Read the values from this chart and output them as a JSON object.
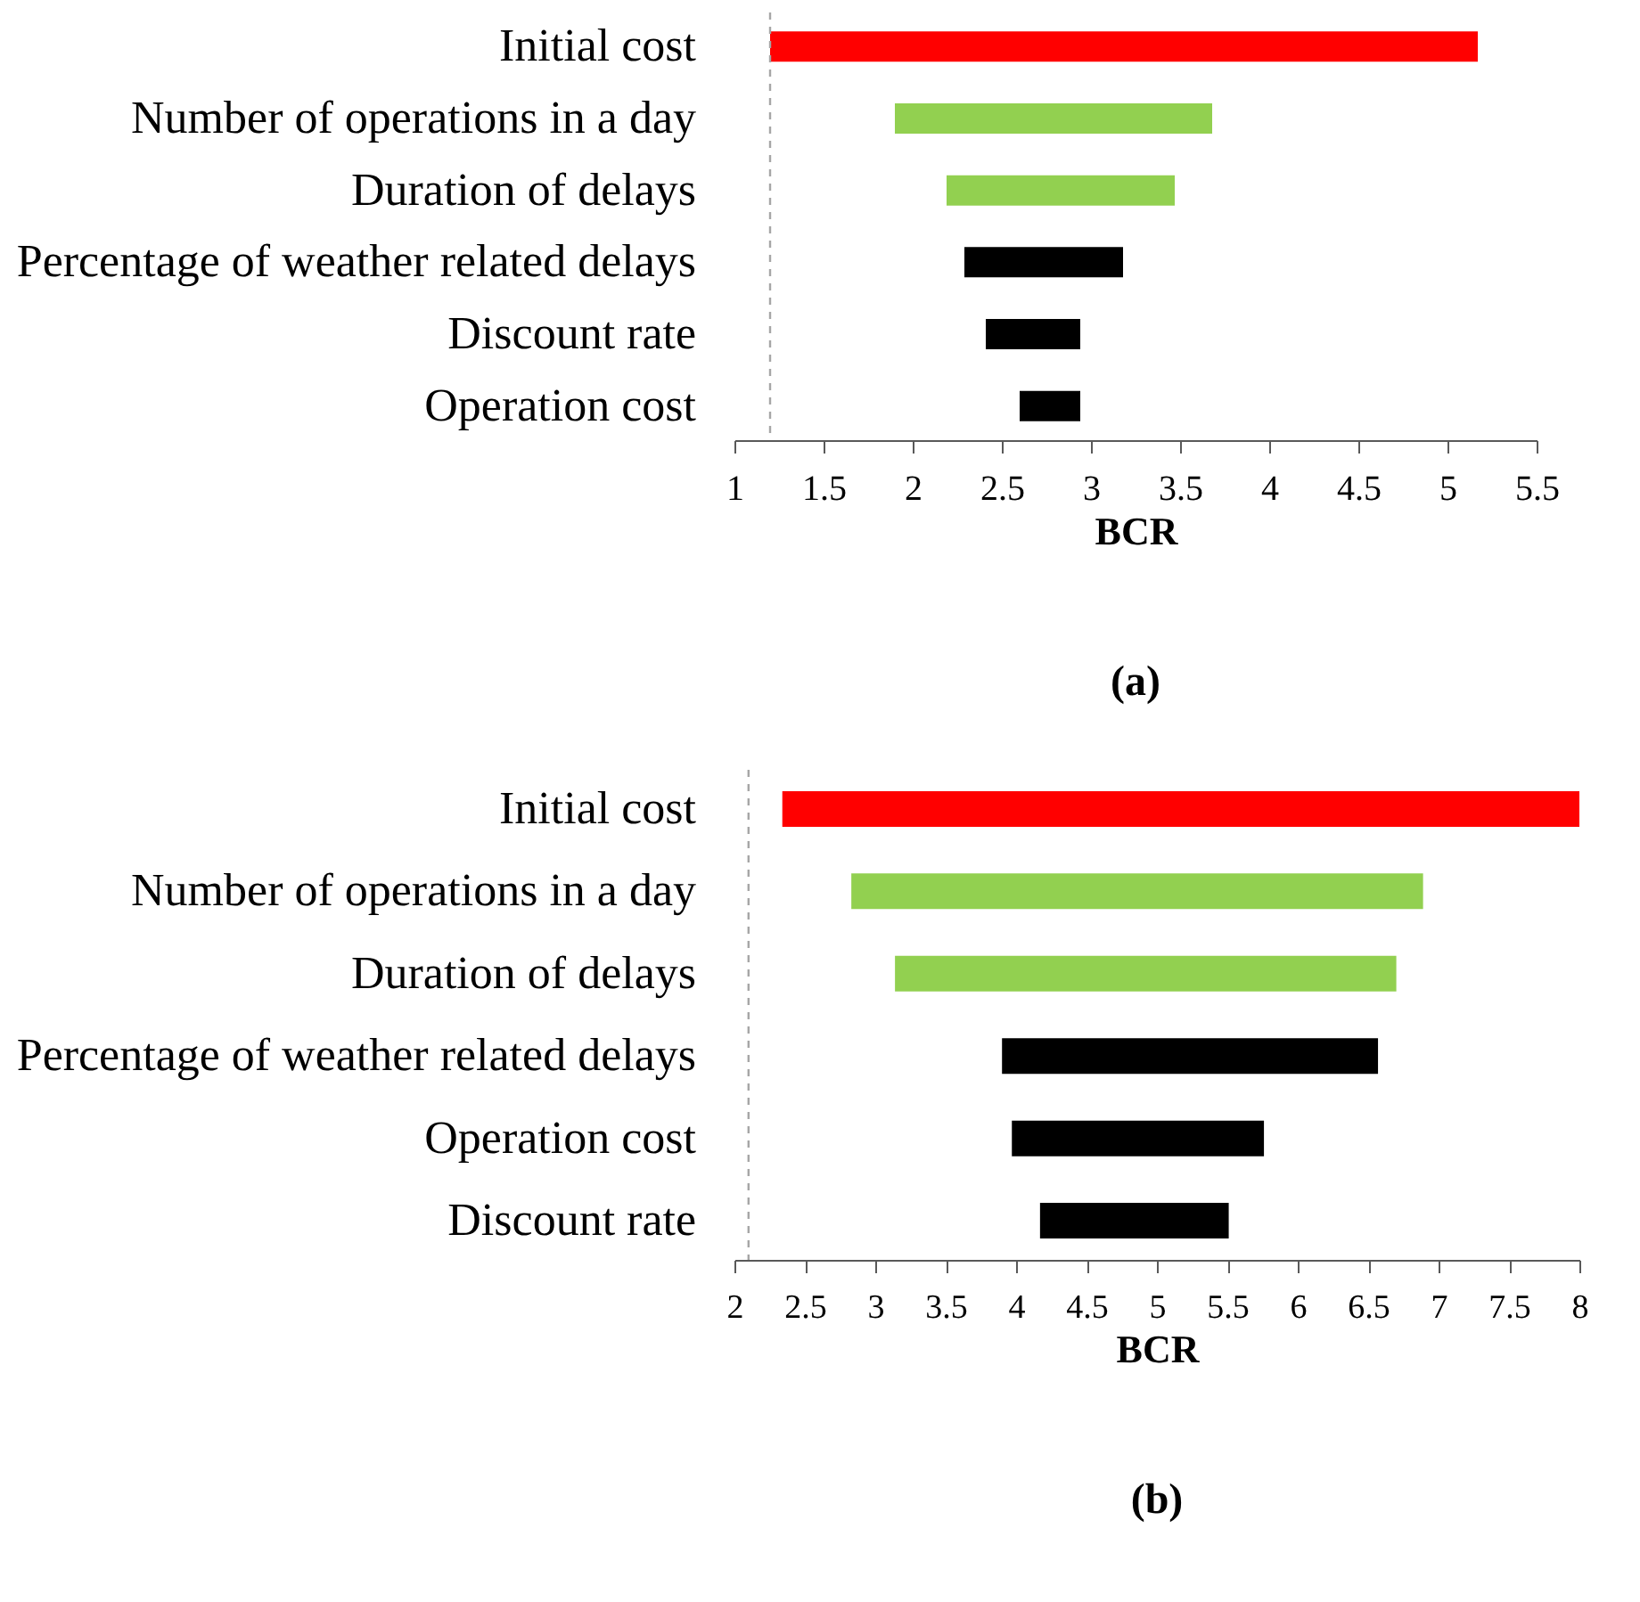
{
  "chart_data": [
    {
      "type": "bar",
      "orientation": "horizontal",
      "title": "(a)",
      "xlabel": "BCR",
      "categories": [
        "Initial cost",
        "Number of operations in a day",
        "Duration of delays",
        "Percentage of weather related delays",
        "Discount rate",
        "Operation cost"
      ],
      "base": [
        1.2,
        1.9,
        2.19,
        2.29,
        2.41,
        2.6
      ],
      "values": [
        3.97,
        1.78,
        1.28,
        0.89,
        0.53,
        0.34
      ],
      "colors": [
        "#ff0000",
        "#92d050",
        "#92d050",
        "#000000",
        "#000000",
        "#000000"
      ],
      "xlim": [
        1,
        5.5
      ],
      "xticks": [
        1,
        1.5,
        2,
        2.5,
        3,
        3.5,
        4,
        4.5,
        5,
        5.5
      ],
      "ref_lines": [
        {
          "axis": "x",
          "value": 1.2,
          "color": "#a6a6a6",
          "line_style": "dashed"
        }
      ]
    },
    {
      "type": "bar",
      "orientation": "horizontal",
      "title": "(b)",
      "xlabel": "BCR",
      "categories": [
        "Initial cost",
        "Number of operations in a day",
        "Duration of delays",
        "Percentage of weather related delays",
        "Operation cost",
        "Discount rate"
      ],
      "base": [
        2.34,
        2.83,
        3.14,
        3.9,
        3.97,
        4.17
      ],
      "values": [
        5.66,
        4.06,
        3.56,
        2.67,
        1.79,
        1.34
      ],
      "colors": [
        "#ff0000",
        "#92d050",
        "#92d050",
        "#000000",
        "#000000",
        "#000000"
      ],
      "xlim": [
        2,
        8
      ],
      "xticks": [
        2,
        2.5,
        3,
        3.5,
        4,
        4.5,
        5,
        5.5,
        6,
        6.5,
        7,
        7.5,
        8
      ],
      "ref_lines": [
        {
          "axis": "x",
          "value": 2.1,
          "color": "#a6a6a6",
          "line_style": "dashed"
        }
      ]
    }
  ]
}
